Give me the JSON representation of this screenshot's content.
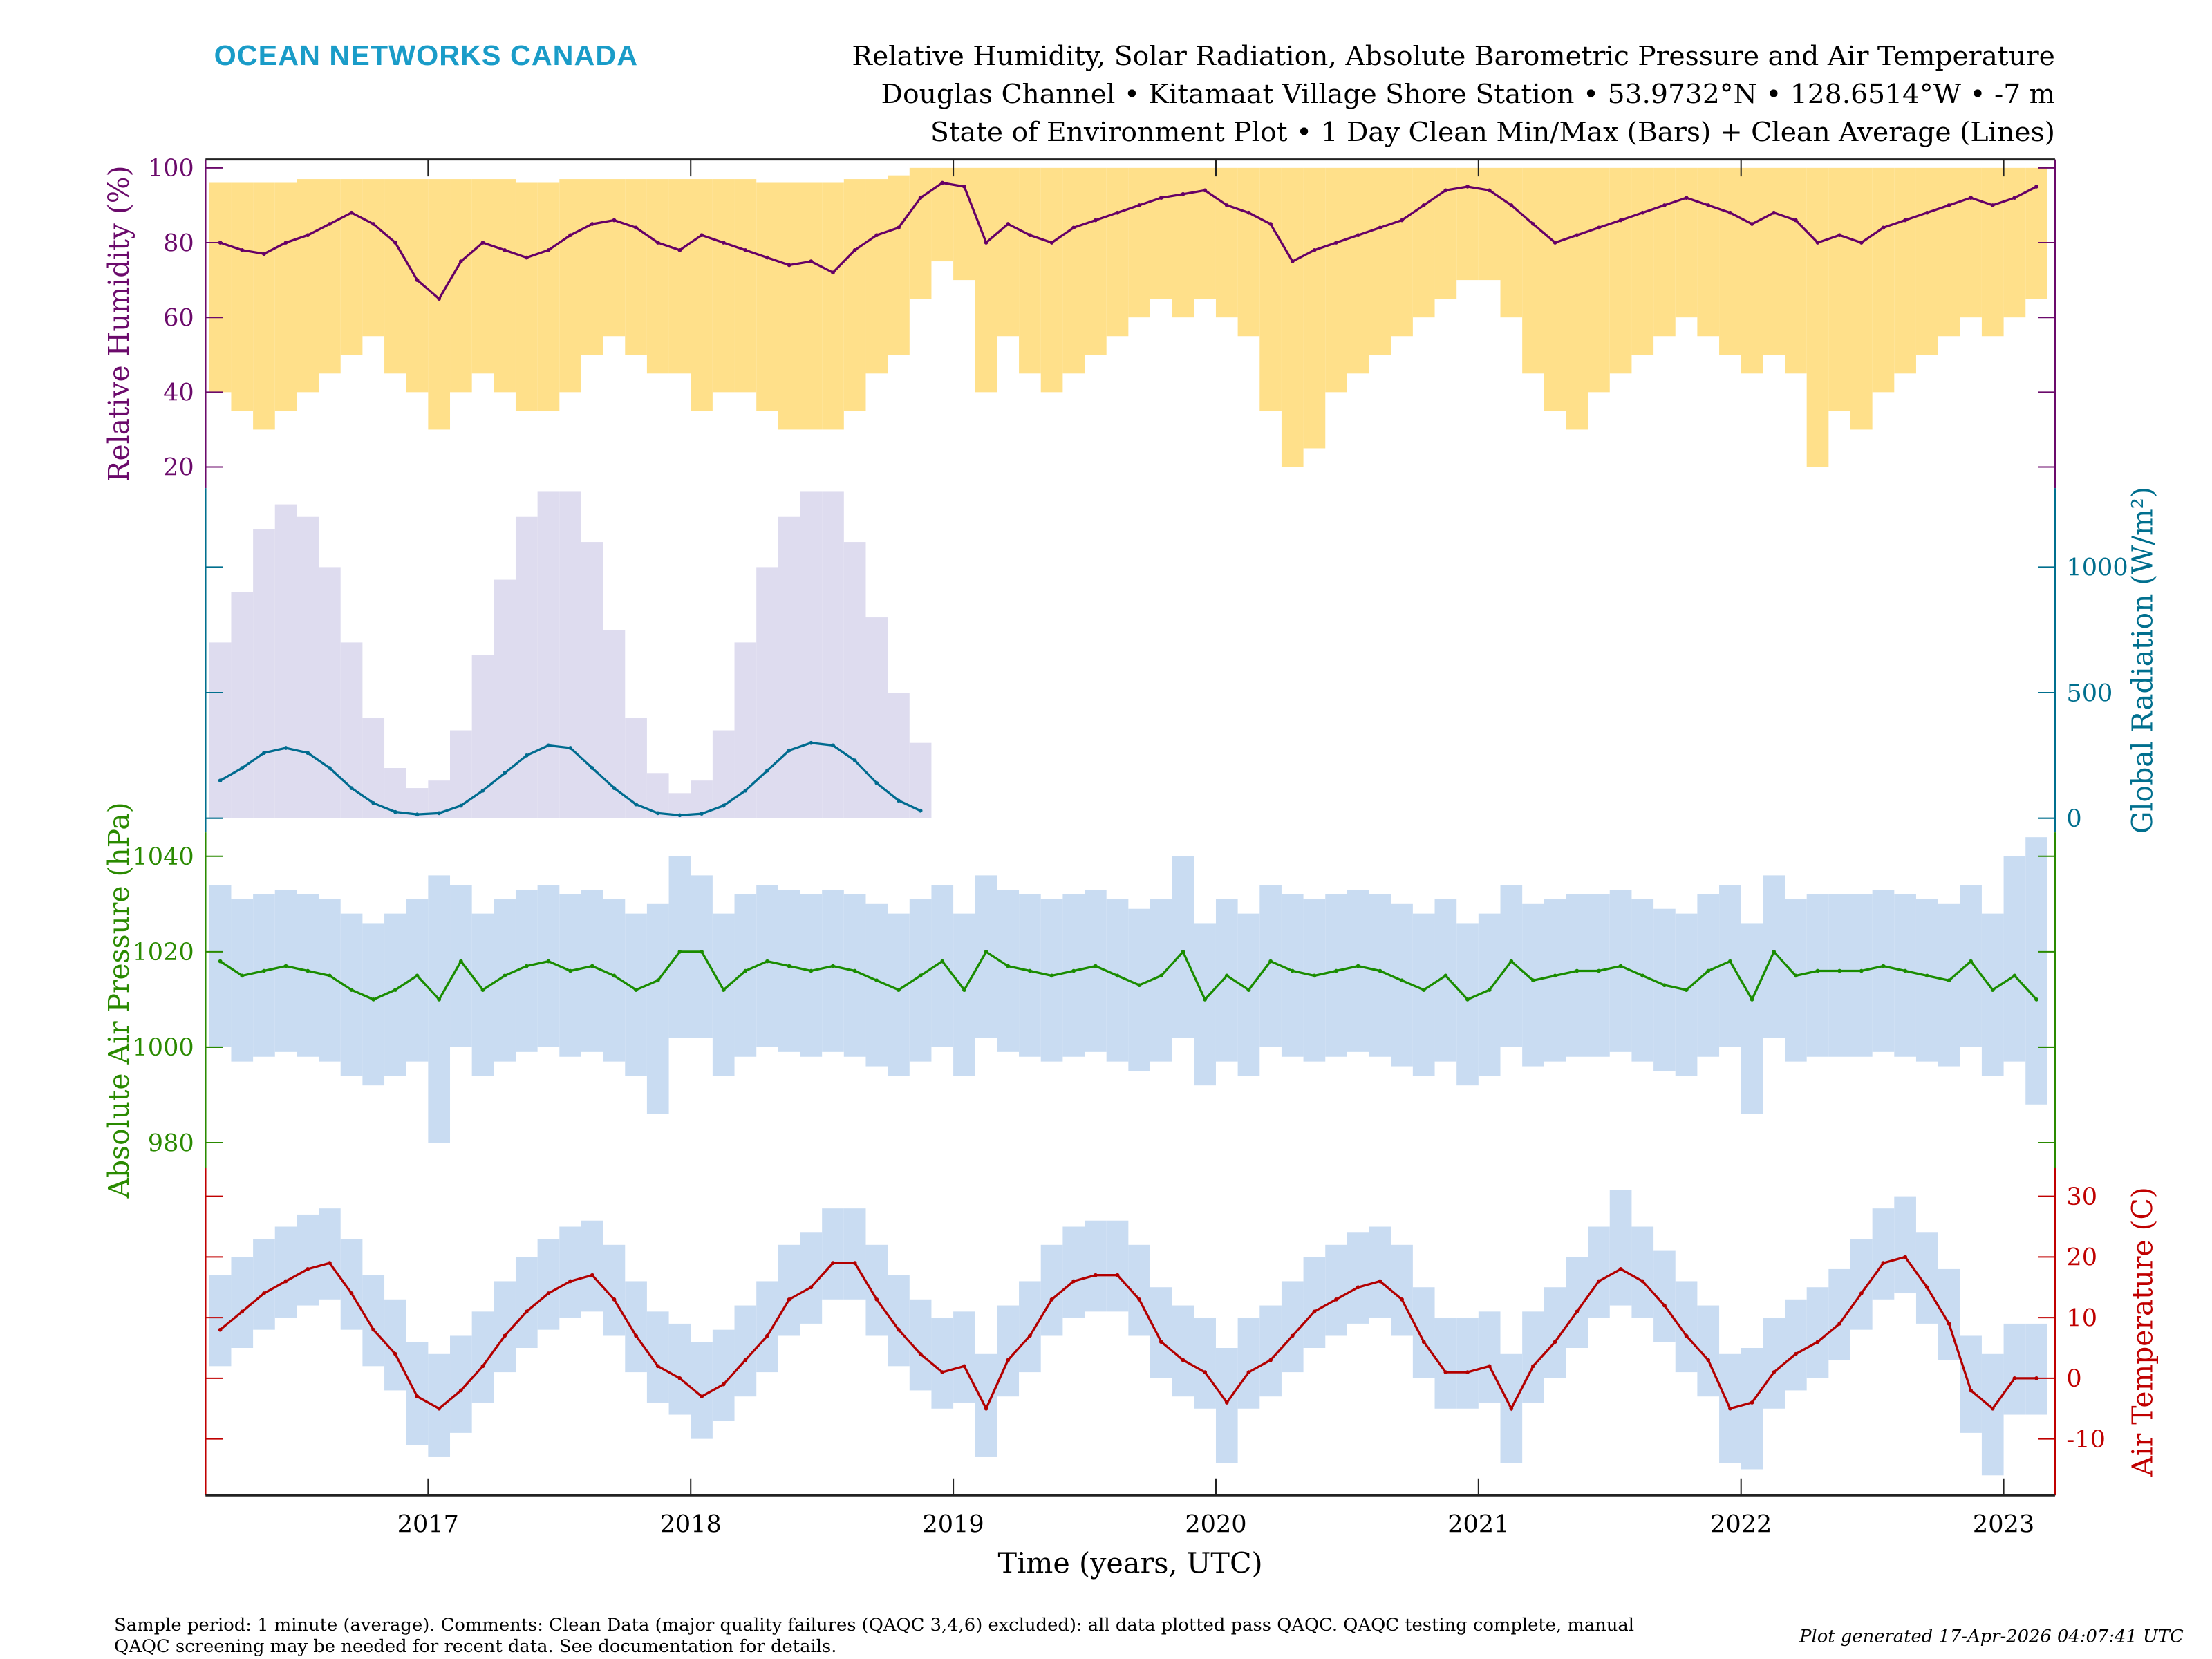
{
  "header": {
    "logo": "OCEAN NETWORKS CANADA",
    "title_lines": [
      "Relative Humidity, Solar Radiation, Absolute Barometric Pressure and Air Temperature",
      "Douglas Channel • Kitamaat Village Shore Station • 53.9732°N • 128.6514°W • -7 m",
      "State of Environment Plot • 1 Day Clean Min/Max (Bars) + Clean Average (Lines)"
    ]
  },
  "footer": {
    "comment_line1": "Sample period: 1 minute (average). Comments: Clean Data (major quality failures (QAQC 3,4,6) excluded): all data plotted pass QAQC. QAQC testing complete, manual",
    "comment_line2": "QAQC screening may be needed for recent data. See documentation for details.",
    "generated": "Plot generated 17-Apr-2026 04:07:41 UTC"
  },
  "chart_data": {
    "type": "line",
    "xlabel": "Time (years, UTC)",
    "x_ticks": [
      "2017",
      "2018",
      "2019",
      "2020",
      "2021",
      "2022",
      "2023"
    ],
    "xlim": [
      2016.15,
      2023.25
    ],
    "time_start": "2016-03",
    "time_resolution": "monthly",
    "grid": false,
    "series": [
      {
        "key": "rh",
        "ylabel": "Relative Humidity (%)",
        "axis_side": "left",
        "ticks": [
          20,
          40,
          60,
          80,
          100
        ],
        "ylim": [
          20,
          100
        ],
        "line_color": "#660066",
        "bar_color": "#ffe08a",
        "axis_color": "#6b0a6b",
        "avg": [
          80,
          78,
          77,
          80,
          82,
          85,
          88,
          85,
          80,
          70,
          65,
          75,
          80,
          78,
          76,
          78,
          82,
          85,
          86,
          84,
          80,
          78,
          82,
          80,
          78,
          76,
          74,
          75,
          72,
          78,
          82,
          84,
          92,
          96,
          95,
          80,
          85,
          82,
          80,
          84,
          86,
          88,
          90,
          92,
          93,
          94,
          90,
          88,
          85,
          75,
          78,
          80,
          82,
          84,
          86,
          90,
          94,
          95,
          94,
          90,
          85,
          80,
          82,
          84,
          86,
          88,
          90,
          92,
          90,
          88,
          85,
          88,
          86,
          80,
          82,
          80,
          84,
          86,
          88,
          90,
          92,
          90,
          92,
          95
        ],
        "min": [
          40,
          35,
          30,
          35,
          40,
          45,
          50,
          55,
          45,
          40,
          30,
          40,
          45,
          40,
          35,
          35,
          40,
          50,
          55,
          50,
          45,
          45,
          35,
          40,
          40,
          35,
          30,
          30,
          30,
          35,
          45,
          50,
          65,
          75,
          70,
          40,
          55,
          45,
          40,
          45,
          50,
          55,
          60,
          65,
          60,
          65,
          60,
          55,
          35,
          20,
          25,
          40,
          45,
          50,
          55,
          60,
          65,
          70,
          70,
          60,
          45,
          35,
          30,
          40,
          45,
          50,
          55,
          60,
          55,
          50,
          45,
          50,
          45,
          20,
          35,
          30,
          40,
          45,
          50,
          55,
          60,
          55,
          60,
          65
        ],
        "max": [
          96,
          96,
          96,
          96,
          97,
          97,
          97,
          97,
          97,
          97,
          97,
          97,
          97,
          97,
          96,
          96,
          97,
          97,
          97,
          97,
          97,
          97,
          97,
          97,
          97,
          96,
          96,
          96,
          96,
          97,
          97,
          98,
          100,
          100,
          100,
          100,
          100,
          100,
          100,
          100,
          100,
          100,
          100,
          100,
          100,
          100,
          100,
          100,
          100,
          100,
          100,
          100,
          100,
          100,
          100,
          100,
          100,
          100,
          100,
          100,
          100,
          100,
          100,
          100,
          100,
          100,
          100,
          100,
          100,
          100,
          100,
          100,
          100,
          100,
          100,
          100,
          100,
          100,
          100,
          100,
          100,
          100,
          100,
          100
        ]
      },
      {
        "key": "rad",
        "ylabel": "Global Radiation (W/m²)",
        "axis_side": "right",
        "ticks": [
          0,
          500,
          1000
        ],
        "ylim": [
          0,
          1250
        ],
        "line_color": "#006b8f",
        "bar_color": "#dedcef",
        "axis_color": "#006f8e",
        "avg": [
          150,
          200,
          260,
          280,
          260,
          200,
          120,
          60,
          25,
          15,
          20,
          50,
          110,
          180,
          250,
          290,
          280,
          200,
          120,
          55,
          20,
          12,
          18,
          50,
          110,
          190,
          270,
          300,
          290,
          230,
          140,
          70,
          30
        ],
        "min": [
          0,
          0,
          0,
          0,
          0,
          0,
          0,
          0,
          0,
          0,
          0,
          0,
          0,
          0,
          0,
          0,
          0,
          0,
          0,
          0,
          0,
          0,
          0,
          0,
          0,
          0,
          0,
          0,
          0,
          0,
          0,
          0,
          0
        ],
        "max": [
          700,
          900,
          1150,
          1250,
          1200,
          1000,
          700,
          400,
          200,
          120,
          150,
          350,
          650,
          950,
          1200,
          1300,
          1300,
          1100,
          750,
          400,
          180,
          100,
          150,
          350,
          700,
          1000,
          1200,
          1300,
          1300,
          1100,
          800,
          500,
          300
        ]
      },
      {
        "key": "pres",
        "ylabel": "Absolute Air Pressure (hPa)",
        "axis_side": "left",
        "ticks": [
          980,
          1000,
          1020,
          1040
        ],
        "ylim": [
          980,
          1040
        ],
        "line_color": "#1a8c00",
        "bar_color": "#c9dcf2",
        "axis_color": "#2a8a00",
        "avg": [
          1018,
          1015,
          1016,
          1017,
          1016,
          1015,
          1012,
          1010,
          1012,
          1015,
          1010,
          1018,
          1012,
          1015,
          1017,
          1018,
          1016,
          1017,
          1015,
          1012,
          1014,
          1020,
          1020,
          1012,
          1016,
          1018,
          1017,
          1016,
          1017,
          1016,
          1014,
          1012,
          1015,
          1018,
          1012,
          1020,
          1017,
          1016,
          1015,
          1016,
          1017,
          1015,
          1013,
          1015,
          1020,
          1010,
          1015,
          1012,
          1018,
          1016,
          1015,
          1016,
          1017,
          1016,
          1014,
          1012,
          1015,
          1010,
          1012,
          1018,
          1014,
          1015,
          1016,
          1016,
          1017,
          1015,
          1013,
          1012,
          1016,
          1018,
          1010,
          1020,
          1015,
          1016,
          1016,
          1016,
          1017,
          1016,
          1015,
          1014,
          1018,
          1012,
          1015,
          1010
        ],
        "min": [
          1000,
          997,
          998,
          999,
          998,
          997,
          994,
          992,
          994,
          997,
          980,
          1000,
          994,
          997,
          999,
          1000,
          998,
          999,
          997,
          994,
          986,
          1002,
          1002,
          994,
          998,
          1000,
          999,
          998,
          999,
          998,
          996,
          994,
          997,
          1000,
          994,
          1002,
          999,
          998,
          997,
          998,
          999,
          997,
          995,
          997,
          1002,
          992,
          997,
          994,
          1000,
          998,
          997,
          998,
          999,
          998,
          996,
          994,
          997,
          992,
          994,
          1000,
          996,
          997,
          998,
          998,
          999,
          997,
          995,
          994,
          998,
          1000,
          986,
          1002,
          997,
          998,
          998,
          998,
          999,
          998,
          997,
          996,
          1000,
          994,
          997,
          988
        ],
        "max": [
          1034,
          1031,
          1032,
          1033,
          1032,
          1031,
          1028,
          1026,
          1028,
          1031,
          1036,
          1034,
          1028,
          1031,
          1033,
          1034,
          1032,
          1033,
          1031,
          1028,
          1030,
          1040,
          1036,
          1028,
          1032,
          1034,
          1033,
          1032,
          1033,
          1032,
          1030,
          1028,
          1031,
          1034,
          1028,
          1036,
          1033,
          1032,
          1031,
          1032,
          1033,
          1031,
          1029,
          1031,
          1040,
          1026,
          1031,
          1028,
          1034,
          1032,
          1031,
          1032,
          1033,
          1032,
          1030,
          1028,
          1031,
          1026,
          1028,
          1034,
          1030,
          1031,
          1032,
          1032,
          1033,
          1031,
          1029,
          1028,
          1032,
          1034,
          1026,
          1036,
          1031,
          1032,
          1032,
          1032,
          1033,
          1032,
          1031,
          1030,
          1034,
          1028,
          1040,
          1044
        ]
      },
      {
        "key": "temp",
        "ylabel": "Air Temperature (C)",
        "axis_side": "right",
        "ticks": [
          -10,
          0,
          10,
          20,
          30
        ],
        "ylim": [
          -20,
          35
        ],
        "line_color": "#b30000",
        "bar_color": "#c9dcf2",
        "axis_color": "#c00000",
        "avg": [
          8,
          11,
          14,
          16,
          18,
          19,
          14,
          8,
          4,
          -3,
          -5,
          -2,
          2,
          7,
          11,
          14,
          16,
          17,
          13,
          7,
          2,
          0,
          -3,
          -1,
          3,
          7,
          13,
          15,
          19,
          19,
          13,
          8,
          4,
          1,
          2,
          -5,
          3,
          7,
          13,
          16,
          17,
          17,
          13,
          6,
          3,
          1,
          -4,
          1,
          3,
          7,
          11,
          13,
          15,
          16,
          13,
          6,
          1,
          1,
          2,
          -5,
          2,
          6,
          11,
          16,
          18,
          16,
          12,
          7,
          3,
          -5,
          -4,
          1,
          4,
          6,
          9,
          14,
          19,
          20,
          15,
          9,
          -2,
          -5,
          0,
          0
        ],
        "min": [
          2,
          5,
          8,
          10,
          12,
          13,
          8,
          2,
          -2,
          -11,
          -13,
          -9,
          -4,
          1,
          5,
          8,
          10,
          11,
          7,
          1,
          -4,
          -6,
          -10,
          -7,
          -3,
          1,
          7,
          9,
          13,
          13,
          7,
          2,
          -2,
          -5,
          -4,
          -13,
          -3,
          1,
          7,
          10,
          11,
          11,
          7,
          0,
          -3,
          -5,
          -14,
          -5,
          -3,
          1,
          5,
          7,
          9,
          10,
          7,
          0,
          -5,
          -5,
          -4,
          -14,
          -4,
          0,
          5,
          10,
          12,
          10,
          6,
          1,
          -3,
          -14,
          -15,
          -5,
          -2,
          0,
          3,
          8,
          13,
          14,
          9,
          3,
          -9,
          -16,
          -6,
          -6
        ],
        "max": [
          17,
          20,
          23,
          25,
          27,
          28,
          23,
          17,
          13,
          6,
          4,
          7,
          11,
          16,
          20,
          23,
          25,
          26,
          22,
          16,
          11,
          9,
          6,
          8,
          12,
          16,
          22,
          24,
          28,
          28,
          22,
          17,
          13,
          10,
          11,
          4,
          12,
          16,
          22,
          25,
          26,
          26,
          22,
          15,
          12,
          10,
          5,
          10,
          12,
          16,
          20,
          22,
          24,
          25,
          22,
          15,
          10,
          10,
          11,
          4,
          11,
          15,
          20,
          25,
          31,
          25,
          21,
          16,
          12,
          4,
          5,
          10,
          13,
          15,
          18,
          23,
          28,
          30,
          24,
          18,
          7,
          4,
          9,
          9
        ]
      }
    ]
  }
}
